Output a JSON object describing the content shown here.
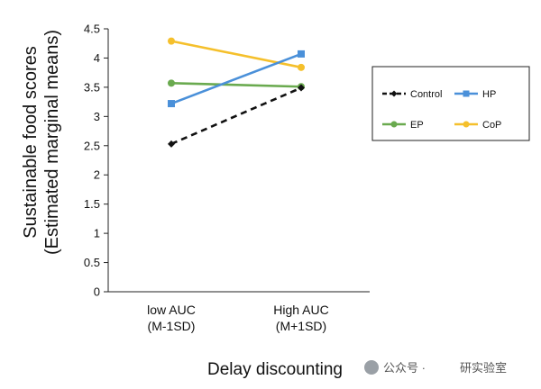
{
  "chart_data": {
    "type": "line",
    "title": "",
    "xlabel": "Delay discounting",
    "ylabel_lines": [
      "Sustainable food scores",
      "(Estimated marginal means)"
    ],
    "ylim": [
      0,
      4.5
    ],
    "yticks": [
      "0",
      "0.5",
      "1",
      "1.5",
      "2",
      "2.5",
      "3",
      "3.5",
      "4",
      "4.5"
    ],
    "categories": [
      [
        "low AUC",
        "(M-1SD)"
      ],
      [
        "High AUC",
        "(M+1SD)"
      ]
    ],
    "series": [
      {
        "name": "Control",
        "values": [
          2.53,
          3.49
        ],
        "color": "#111111",
        "dashed": true,
        "marker": "diamond"
      },
      {
        "name": "HP",
        "values": [
          3.22,
          4.07
        ],
        "color": "#4a90d9",
        "dashed": false,
        "marker": "square"
      },
      {
        "name": "EP",
        "values": [
          3.57,
          3.51
        ],
        "color": "#6aaa4f",
        "dashed": false,
        "marker": "circle"
      },
      {
        "name": "CoP",
        "values": [
          4.29,
          3.84
        ],
        "color": "#f5c02c",
        "dashed": false,
        "marker": "circle"
      }
    ],
    "legend_position": "right",
    "grid": false
  },
  "watermark": {
    "left_text": "公众号 ·",
    "right_text": "研实验室"
  }
}
